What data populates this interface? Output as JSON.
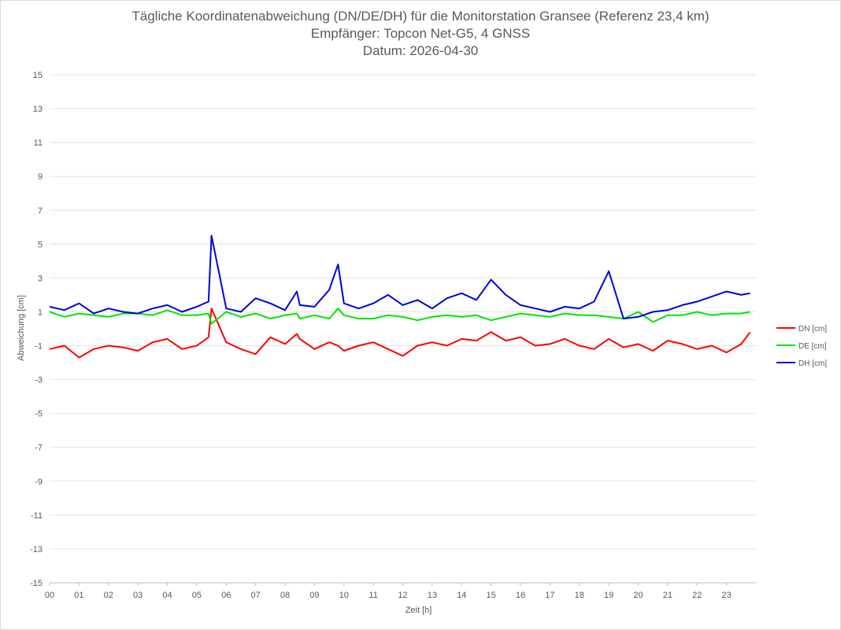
{
  "chart_data": {
    "type": "line",
    "title": "Tägliche Koordinatenabweichung (DN/DE/DH) für die Monitorstation Gransee (Referenz 23,4 km)",
    "subtitle": "Empfänger: Topcon Net-G5, 4 GNSS",
    "date_line": "Datum: 2026-04-30",
    "xlabel": "Zeit [h]",
    "ylabel": "Abweichung [cm]",
    "xlim": [
      0,
      24
    ],
    "ylim": [
      -15,
      15
    ],
    "x_ticks": [
      "00",
      "01",
      "02",
      "03",
      "04",
      "05",
      "06",
      "07",
      "08",
      "09",
      "10",
      "11",
      "12",
      "13",
      "14",
      "15",
      "16",
      "17",
      "18",
      "19",
      "20",
      "21",
      "22",
      "23"
    ],
    "y_ticks": [
      "15",
      "13",
      "11",
      "9",
      "7",
      "5",
      "3",
      "1",
      "-1",
      "-3",
      "-5",
      "-7",
      "-9",
      "-11",
      "-13",
      "-15"
    ],
    "grid": "horizontal",
    "legend_position": "right",
    "x": [
      0.0,
      0.5,
      1.0,
      1.5,
      2.0,
      2.5,
      3.0,
      3.5,
      4.0,
      4.5,
      5.0,
      5.4,
      5.5,
      6.0,
      6.5,
      7.0,
      7.5,
      8.0,
      8.4,
      8.5,
      9.0,
      9.5,
      9.8,
      10.0,
      10.5,
      11.0,
      11.5,
      12.0,
      12.5,
      13.0,
      13.5,
      14.0,
      14.5,
      15.0,
      15.5,
      16.0,
      16.5,
      17.0,
      17.5,
      18.0,
      18.5,
      19.0,
      19.5,
      20.0,
      20.5,
      21.0,
      21.5,
      22.0,
      22.5,
      23.0,
      23.5,
      23.8
    ],
    "series": [
      {
        "name": "DN [cm]",
        "color": "#ff0000",
        "values": [
          -1.2,
          -1.0,
          -1.7,
          -1.2,
          -1.0,
          -1.1,
          -1.3,
          -0.8,
          -0.6,
          -1.2,
          -1.0,
          -0.5,
          1.2,
          -0.8,
          -1.2,
          -1.5,
          -0.5,
          -0.9,
          -0.3,
          -0.6,
          -1.2,
          -0.8,
          -1.0,
          -1.3,
          -1.0,
          -0.8,
          -1.2,
          -1.6,
          -1.0,
          -0.8,
          -1.0,
          -0.6,
          -0.7,
          -0.2,
          -0.7,
          -0.5,
          -1.0,
          -0.9,
          -0.6,
          -1.0,
          -1.2,
          -0.6,
          -1.1,
          -0.9,
          -1.3,
          -0.7,
          -0.9,
          -1.2,
          -1.0,
          -1.4,
          -0.9,
          -0.2
        ]
      },
      {
        "name": "DE [cm]",
        "color": "#00e600",
        "values": [
          1.0,
          0.7,
          0.9,
          0.8,
          0.7,
          0.9,
          0.9,
          0.8,
          1.1,
          0.8,
          0.8,
          0.9,
          0.3,
          1.0,
          0.7,
          0.9,
          0.6,
          0.8,
          0.9,
          0.6,
          0.8,
          0.6,
          1.2,
          0.8,
          0.6,
          0.6,
          0.8,
          0.7,
          0.5,
          0.7,
          0.8,
          0.7,
          0.8,
          0.5,
          0.7,
          0.9,
          0.8,
          0.7,
          0.9,
          0.8,
          0.8,
          0.7,
          0.6,
          1.0,
          0.4,
          0.8,
          0.8,
          1.0,
          0.8,
          0.9,
          0.9,
          1.0
        ]
      },
      {
        "name": "DH [cm]",
        "color": "#0000dd",
        "values": [
          1.3,
          1.1,
          1.5,
          0.9,
          1.2,
          1.0,
          0.9,
          1.2,
          1.4,
          1.0,
          1.3,
          1.6,
          5.5,
          1.2,
          1.0,
          1.8,
          1.5,
          1.1,
          2.2,
          1.4,
          1.3,
          2.3,
          3.8,
          1.5,
          1.2,
          1.5,
          2.0,
          1.4,
          1.7,
          1.2,
          1.8,
          2.1,
          1.7,
          2.9,
          2.0,
          1.4,
          1.2,
          1.0,
          1.3,
          1.2,
          1.6,
          3.4,
          0.6,
          0.7,
          1.0,
          1.1,
          1.4,
          1.6,
          1.9,
          2.2,
          2.0,
          2.1
        ]
      }
    ]
  }
}
